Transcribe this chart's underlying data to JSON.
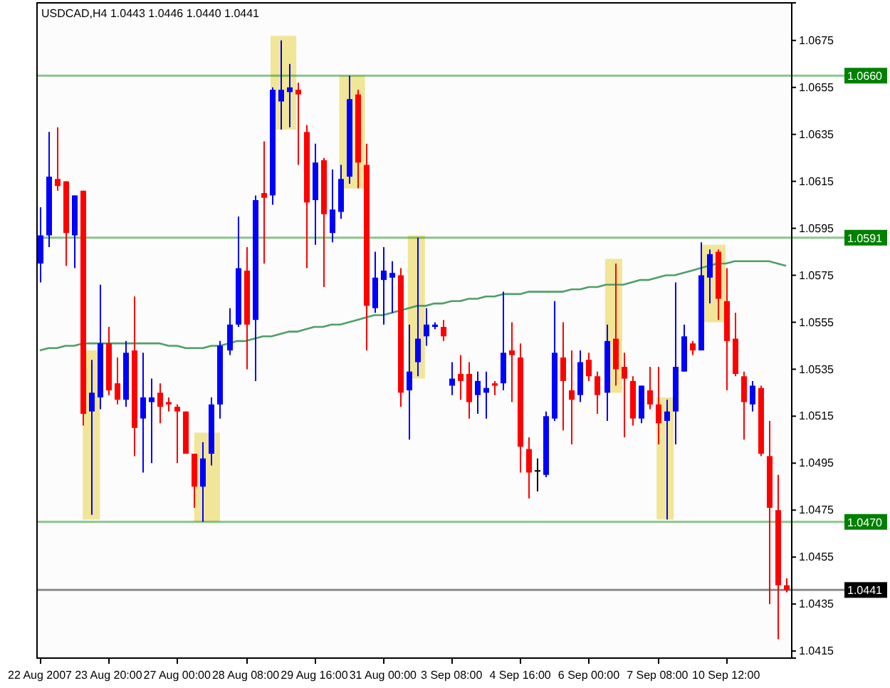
{
  "chart_data": {
    "type": "candlestick",
    "title": "USDCAD,H4 1.0443 1.0446 1.0440 1.0441",
    "categories": [
      "22 Aug 2007",
      null,
      null,
      null,
      null,
      null,
      null,
      null,
      "23 Aug 20:00",
      null,
      null,
      null,
      null,
      null,
      null,
      null,
      "27 Aug 00:00",
      null,
      null,
      null,
      null,
      null,
      null,
      null,
      "28 Aug 08:00",
      null,
      null,
      null,
      null,
      null,
      null,
      null,
      "29 Aug 16:00",
      null,
      null,
      null,
      null,
      null,
      null,
      null,
      "31 Aug 00:00",
      null,
      null,
      null,
      null,
      null,
      null,
      null,
      "3 Sep 08:00",
      null,
      null,
      null,
      null,
      null,
      null,
      null,
      "4 Sep 16:00",
      null,
      null,
      null,
      null,
      null,
      null,
      null,
      "6 Sep 00:00",
      null,
      null,
      null,
      null,
      null,
      null,
      null,
      "7 Sep 08:00",
      null,
      null,
      null,
      null,
      null,
      null,
      null,
      "10 Sep 12:00",
      null,
      null,
      null,
      null,
      null,
      null,
      null
    ],
    "ohlc": [
      [
        1.058,
        1.0604,
        1.0572,
        1.0592
      ],
      [
        1.0592,
        1.0636,
        1.0587,
        1.0617
      ],
      [
        1.0616,
        1.0638,
        1.0611,
        1.0613
      ],
      [
        1.0615,
        1.0615,
        1.0579,
        1.0593
      ],
      [
        1.0592,
        1.0609,
        1.0578,
        1.0609
      ],
      [
        1.0611,
        1.0611,
        1.0511,
        1.0516
      ],
      [
        1.0517,
        1.0539,
        1.0473,
        1.0525
      ],
      [
        1.0523,
        1.0571,
        1.0518,
        1.0546
      ],
      [
        1.0546,
        1.0553,
        1.0524,
        1.0526
      ],
      [
        1.0529,
        1.054,
        1.052,
        1.0522
      ],
      [
        1.0522,
        1.0547,
        1.0519,
        1.0542
      ],
      [
        1.0543,
        1.0566,
        1.0498,
        1.051
      ],
      [
        1.0514,
        1.0542,
        1.0491,
        1.0523
      ],
      [
        1.0521,
        1.0531,
        1.0495,
        1.0523
      ],
      [
        1.0525,
        1.0529,
        1.0512,
        1.0519
      ],
      [
        1.0521,
        1.0523,
        1.0517,
        1.052
      ],
      [
        1.0519,
        1.052,
        1.0495,
        1.0517
      ],
      [
        1.0517,
        1.0517,
        1.0499,
        1.0499
      ],
      [
        1.0499,
        1.0499,
        1.0476,
        1.0485
      ],
      [
        1.0485,
        1.0504,
        1.047,
        1.0497
      ],
      [
        1.0499,
        1.0523,
        1.0494,
        1.052
      ],
      [
        1.052,
        1.0547,
        1.0514,
        1.0545
      ],
      [
        1.0543,
        1.0561,
        1.0541,
        1.0554
      ],
      [
        1.0554,
        1.06,
        1.0553,
        1.0578
      ],
      [
        1.0577,
        1.0587,
        1.0535,
        1.0554
      ],
      [
        1.0556,
        1.0609,
        1.053,
        1.0607
      ],
      [
        1.061,
        1.0632,
        1.058,
        1.0608
      ],
      [
        1.0609,
        1.0655,
        1.0605,
        1.0654
      ],
      [
        1.0649,
        1.0675,
        1.0637,
        1.0654
      ],
      [
        1.0653,
        1.0665,
        1.0638,
        1.0655
      ],
      [
        1.0654,
        1.0657,
        1.0622,
        1.0652
      ],
      [
        1.0636,
        1.0639,
        1.0578,
        1.0606
      ],
      [
        1.0607,
        1.0631,
        1.0588,
        1.0623
      ],
      [
        1.0624,
        1.0625,
        1.057,
        1.0601
      ],
      [
        1.0593,
        1.062,
        1.0589,
        1.0603
      ],
      [
        1.0602,
        1.0622,
        1.0599,
        1.0616
      ],
      [
        1.0617,
        1.066,
        1.0614,
        1.065
      ],
      [
        1.0652,
        1.0654,
        1.0612,
        1.0623
      ],
      [
        1.0622,
        1.0631,
        1.0543,
        1.0562
      ],
      [
        1.0561,
        1.0585,
        1.0559,
        1.0574
      ],
      [
        1.0573,
        1.0587,
        1.0554,
        1.0577
      ],
      [
        1.0574,
        1.0581,
        1.0559,
        1.0576
      ],
      [
        1.0575,
        1.0578,
        1.0519,
        1.0525
      ],
      [
        1.0526,
        1.0554,
        1.0505,
        1.0534
      ],
      [
        1.0538,
        1.0591,
        1.0532,
        1.0548
      ],
      [
        1.0549,
        1.0561,
        1.0545,
        1.0554
      ],
      [
        1.0553,
        1.0555,
        1.0552,
        1.0554
      ],
      [
        1.0553,
        1.0556,
        1.0547,
        1.0549
      ],
      [
        1.0528,
        1.0538,
        1.0524,
        1.0531
      ],
      [
        1.0533,
        1.0541,
        1.0522,
        1.053
      ],
      [
        1.0533,
        1.0538,
        1.0514,
        1.0521
      ],
      [
        1.0524,
        1.0534,
        1.0516,
        1.053
      ],
      [
        1.0525,
        1.0534,
        1.0514,
        1.0527
      ],
      [
        1.0529,
        1.053,
        1.0524,
        1.0528
      ],
      [
        1.0529,
        1.0568,
        1.0526,
        1.0542
      ],
      [
        1.0543,
        1.0555,
        1.0521,
        1.0541
      ],
      [
        1.054,
        1.0546,
        1.0491,
        1.0502
      ],
      [
        1.0501,
        1.0506,
        1.048,
        1.0491
      ],
      [
        1.0492,
        1.0497,
        1.0483,
        1.0492
      ],
      [
        1.049,
        1.0517,
        1.0489,
        1.0515
      ],
      [
        1.0514,
        1.0564,
        1.0513,
        1.0542
      ],
      [
        1.054,
        1.0555,
        1.0509,
        1.053
      ],
      [
        1.0526,
        1.0543,
        1.0503,
        1.0522
      ],
      [
        1.0524,
        1.0543,
        1.0521,
        1.0538
      ],
      [
        1.0539,
        1.0542,
        1.053,
        1.0532
      ],
      [
        1.0532,
        1.0534,
        1.0516,
        1.0524
      ],
      [
        1.0525,
        1.0554,
        1.0513,
        1.0547
      ],
      [
        1.0548,
        1.058,
        1.0528,
        1.0535
      ],
      [
        1.0536,
        1.0542,
        1.0506,
        1.0531
      ],
      [
        1.053,
        1.0532,
        1.0511,
        1.0514
      ],
      [
        1.0514,
        1.0528,
        1.0512,
        1.0528
      ],
      [
        1.0526,
        1.0536,
        1.0518,
        1.052
      ],
      [
        1.052,
        1.0536,
        1.0503,
        1.0512
      ],
      [
        1.0513,
        1.0522,
        1.0471,
        1.0517
      ],
      [
        1.0517,
        1.0572,
        1.0503,
        1.0536
      ],
      [
        1.0534,
        1.0554,
        1.0534,
        1.0549
      ],
      [
        1.0546,
        1.0547,
        1.0541,
        1.0543
      ],
      [
        1.0543,
        1.0589,
        1.0543,
        1.0575
      ],
      [
        1.0574,
        1.0586,
        1.0563,
        1.0584
      ],
      [
        1.0585,
        1.0586,
        1.0556,
        1.0565
      ],
      [
        1.0564,
        1.0578,
        1.0526,
        1.0547
      ],
      [
        1.0548,
        1.0559,
        1.0532,
        1.0533
      ],
      [
        1.0532,
        1.0534,
        1.0505,
        1.0521
      ],
      [
        1.052,
        1.053,
        1.0517,
        1.0528
      ],
      [
        1.0527,
        1.0528,
        1.0498,
        1.0499
      ],
      [
        1.0498,
        1.0513,
        1.0435,
        1.0476
      ],
      [
        1.0475,
        1.049,
        1.042,
        1.0443
      ],
      [
        1.0443,
        1.0446,
        1.044,
        1.0441
      ]
    ],
    "colors": [
      "#0000ff",
      "#0000ff",
      "#ff0000",
      "#ff0000",
      "#0000ff",
      "#ff0000",
      "#0000ff",
      "#0000ff",
      "#ff0000",
      "#ff0000",
      "#0000ff",
      "#ff0000",
      "#0000ff",
      "#0000ff",
      "#ff0000",
      "#ff0000",
      "#ff0000",
      "#ff0000",
      "#ff0000",
      "#0000ff",
      "#0000ff",
      "#0000ff",
      "#0000ff",
      "#0000ff",
      "#ff0000",
      "#0000ff",
      "#ff0000",
      "#0000ff",
      "#0000ff",
      "#0000ff",
      "#ff0000",
      "#ff0000",
      "#0000ff",
      "#ff0000",
      "#0000ff",
      "#0000ff",
      "#0000ff",
      "#ff0000",
      "#ff0000",
      "#0000ff",
      "#0000ff",
      "#0000ff",
      "#ff0000",
      "#0000ff",
      "#0000ff",
      "#0000ff",
      "#0000ff",
      "#ff0000",
      "#0000ff",
      "#ff0000",
      "#ff0000",
      "#0000ff",
      "#0000ff",
      "#ff0000",
      "#0000ff",
      "#ff0000",
      "#ff0000",
      "#ff0000",
      "#000000",
      "#0000ff",
      "#0000ff",
      "#ff0000",
      "#ff0000",
      "#0000ff",
      "#ff0000",
      "#ff0000",
      "#0000ff",
      "#ff0000",
      "#ff0000",
      "#ff0000",
      "#0000ff",
      "#ff0000",
      "#ff0000",
      "#0000ff",
      "#0000ff",
      "#0000ff",
      "#ff0000",
      "#0000ff",
      "#0000ff",
      "#ff0000",
      "#ff0000",
      "#ff0000",
      "#ff0000",
      "#0000ff",
      "#ff0000",
      "#ff0000",
      "#ff0000",
      "#ff0000"
    ],
    "series": [
      {
        "type": "line",
        "color": "#4f9f68",
        "values": [
          1.0543,
          1.0544,
          1.0544,
          1.0545,
          1.0545,
          1.0546,
          1.0546,
          1.0546,
          1.0546,
          1.0546,
          1.0546,
          1.0546,
          1.0546,
          1.0546,
          1.0546,
          1.0545,
          1.0545,
          1.0544,
          1.0544,
          1.0544,
          1.0545,
          1.0545,
          1.0546,
          1.0547,
          1.0547,
          1.0548,
          1.0549,
          1.0549,
          1.055,
          1.0551,
          1.0551,
          1.0552,
          1.0553,
          1.0553,
          1.0554,
          1.0554,
          1.0555,
          1.0556,
          1.0557,
          1.0558,
          1.0558,
          1.0559,
          1.056,
          1.0561,
          1.0562,
          1.0562,
          1.0563,
          1.0563,
          1.0564,
          1.0564,
          1.0565,
          1.0565,
          1.0566,
          1.0566,
          1.0567,
          1.0567,
          1.0567,
          1.0568,
          1.0568,
          1.0568,
          1.0568,
          1.0568,
          1.0569,
          1.0569,
          1.057,
          1.057,
          1.0571,
          1.0571,
          1.0571,
          1.0572,
          1.0573,
          1.0573,
          1.0574,
          1.0575,
          1.0575,
          1.0576,
          1.0577,
          1.0578,
          1.0579,
          1.058,
          1.058,
          1.0581,
          1.0581,
          1.0581,
          1.0581,
          1.0581,
          1.058,
          1.0579
        ]
      }
    ],
    "ylim": [
      1.0412,
      1.0691
    ],
    "yticks": [
      1.0675,
      1.0655,
      1.0635,
      1.0615,
      1.0595,
      1.0575,
      1.0555,
      1.0535,
      1.0515,
      1.0495,
      1.0475,
      1.0455,
      1.0435,
      1.0415
    ],
    "ref_lines": [
      {
        "axis": "y",
        "value": 1.066,
        "label": "1.0660",
        "color": "#008000"
      },
      {
        "axis": "y",
        "value": 1.0591,
        "label": "1.0591",
        "color": "#008000"
      },
      {
        "axis": "y",
        "value": 1.047,
        "label": "1.0470",
        "color": "#008000"
      },
      {
        "axis": "y",
        "value": 1.0441,
        "label": "1.0441",
        "color": "#000000"
      }
    ],
    "grid": false
  }
}
